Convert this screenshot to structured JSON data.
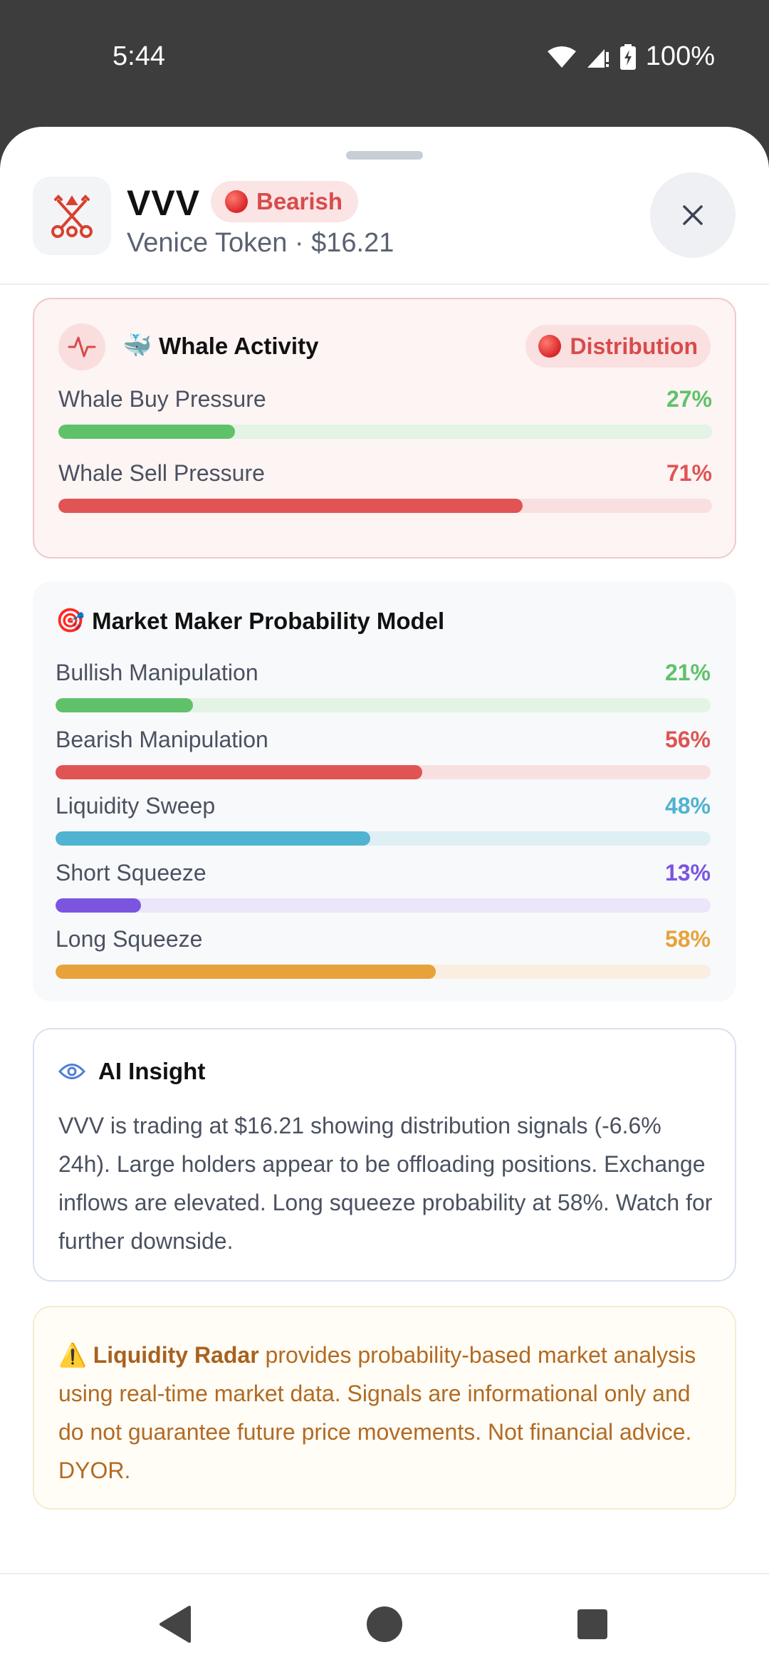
{
  "status_bar": {
    "time": "5:44",
    "battery": "100%",
    "icons": [
      "wifi-icon",
      "cell-signal-icon",
      "battery-charging-icon"
    ]
  },
  "token": {
    "symbol": "VVV",
    "sentiment": "Bearish",
    "subtitle": "Venice Token · $16.21",
    "logo_icon": "crossed-keys-icon",
    "accent_color": "#d84b4b"
  },
  "whale_activity": {
    "title": "Whale Activity",
    "emoji": "🐳",
    "badge": "Distribution",
    "metrics": [
      {
        "label": "Whale Buy Pressure",
        "value_text": "27%",
        "value": 27,
        "color": "#5fc26a",
        "track": "#e3f3e5"
      },
      {
        "label": "Whale Sell Pressure",
        "value_text": "71%",
        "value": 71,
        "color": "#e05453",
        "track": "#f9e0e0"
      }
    ]
  },
  "market_maker": {
    "title": "Market Maker Probability Model",
    "emoji": "🎯",
    "metrics": [
      {
        "label": "Bullish Manipulation",
        "value_text": "21%",
        "value": 21,
        "color": "#5fc26a",
        "track": "#e3f3e5"
      },
      {
        "label": "Bearish Manipulation",
        "value_text": "56%",
        "value": 56,
        "color": "#e05453",
        "track": "#f9e0e0"
      },
      {
        "label": "Liquidity Sweep",
        "value_text": "48%",
        "value": 48,
        "color": "#4fb3d1",
        "track": "#dff0f5"
      },
      {
        "label": "Short Squeeze",
        "value_text": "13%",
        "value": 13,
        "color": "#7b55e0",
        "track": "#ebe6fa"
      },
      {
        "label": "Long Squeeze",
        "value_text": "58%",
        "value": 58,
        "color": "#e8a23a",
        "track": "#f9eedf"
      }
    ]
  },
  "ai_insight": {
    "title": "AI Insight",
    "icon": "eye-icon",
    "text": "VVV is trading at $16.21 showing distribution signals (-6.6% 24h). Large holders appear to be offloading positions. Exchange inflows are elevated. Long squeeze probability at 58%. Watch for further downside."
  },
  "disclaimer": {
    "emoji": "⚠️",
    "brand": "Liquidity Radar",
    "text": " provides probability-based market analysis using real-time market data. Signals are informational only and do not guarantee future price movements. Not financial advice. DYOR."
  },
  "nav": {
    "back": "back-icon",
    "home": "home-icon",
    "recents": "recents-icon"
  }
}
